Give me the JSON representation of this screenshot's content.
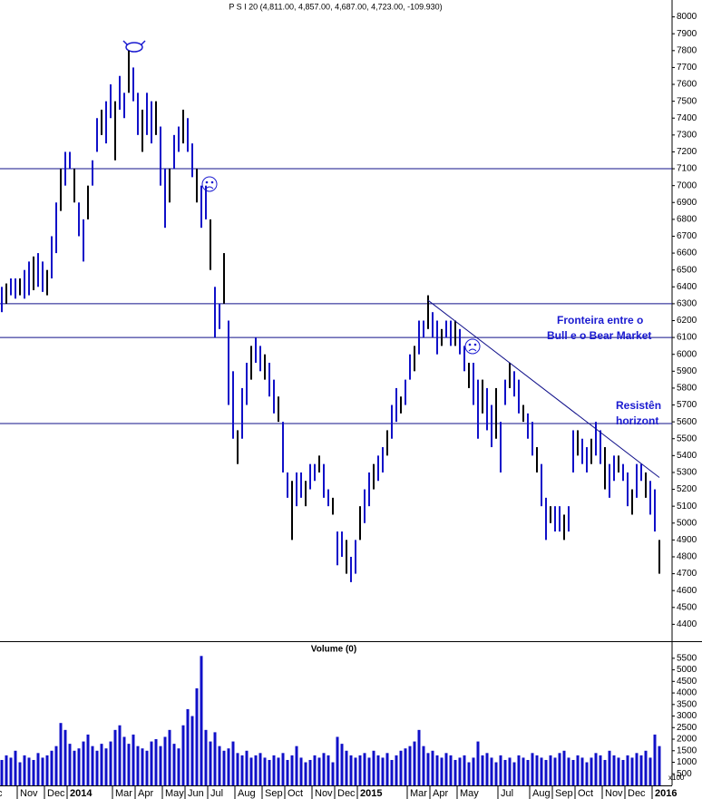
{
  "chart_data": [
    {
      "type": "range",
      "title": "P S I 20 (4,811.00, 4,857.00, 4,687.00, 4,723.00, -109.930)",
      "color": "#1010c8",
      "categories": [
        "c",
        null,
        null,
        null,
        "Nov",
        null,
        null,
        null,
        null,
        null,
        "Dec",
        null,
        null,
        null,
        null,
        "2014",
        null,
        null,
        null,
        null,
        null,
        null,
        null,
        null,
        null,
        "Mar",
        null,
        null,
        null,
        null,
        "Apr",
        null,
        null,
        null,
        null,
        null,
        "May",
        null,
        null,
        null,
        null,
        "Jun",
        null,
        null,
        null,
        null,
        "Jul",
        null,
        null,
        null,
        null,
        null,
        "Aug",
        null,
        null,
        null,
        null,
        null,
        "Sep",
        null,
        null,
        null,
        null,
        "Oct",
        null,
        null,
        null,
        null,
        null,
        "Nov",
        null,
        null,
        null,
        null,
        "Dec",
        null,
        null,
        null,
        null,
        "2015",
        null,
        null,
        null,
        null,
        null,
        null,
        null,
        null,
        null,
        null,
        "Mar",
        null,
        null,
        null,
        null,
        "Apr",
        null,
        null,
        null,
        null,
        null,
        "May",
        null,
        null,
        null,
        null,
        null,
        null,
        null,
        null,
        "Jul",
        null,
        null,
        null,
        null,
        null,
        null,
        "Aug",
        null,
        null,
        null,
        null,
        "Sep",
        null,
        null,
        null,
        null,
        "Oct",
        null,
        null,
        null,
        null,
        null,
        "Nov",
        null,
        null,
        null,
        null,
        "Dec",
        null,
        null,
        null,
        null,
        null,
        "2016",
        null
      ],
      "low": [
        6250,
        6300,
        6350,
        6330,
        6350,
        6330,
        6350,
        6380,
        6400,
        6370,
        6350,
        6450,
        6600,
        6850,
        7000,
        7100,
        6900,
        6700,
        6550,
        6800,
        7000,
        7200,
        7300,
        7250,
        7400,
        7150,
        7450,
        7400,
        7550,
        7500,
        7300,
        7200,
        7300,
        7250,
        7300,
        7000,
        6750,
        6900,
        7100,
        7200,
        7250,
        7200,
        7050,
        6900,
        6750,
        6800,
        6500,
        6100,
        6150,
        6300,
        5700,
        5500,
        5350,
        5500,
        5700,
        5850,
        5950,
        5900,
        5850,
        5750,
        5650,
        5600,
        5300,
        5150,
        4900,
        5100,
        5150,
        5100,
        5200,
        5250,
        5300,
        5150,
        5100,
        5050,
        4750,
        4800,
        4700,
        4650,
        4700,
        4900,
        5000,
        5100,
        5200,
        5250,
        5300,
        5400,
        5500,
        5600,
        5650,
        5700,
        5850,
        5900,
        6000,
        6100,
        6150,
        6100,
        6000,
        6050,
        6100,
        6050,
        6050,
        6000,
        5900,
        5800,
        5700,
        5500,
        5650,
        5550,
        5450,
        5500,
        5300,
        5700,
        5800,
        5750,
        5650,
        5600,
        5500,
        5400,
        5300,
        5100,
        4900,
        5000,
        4950,
        4950,
        4900,
        4950,
        5300,
        5400,
        5350,
        5300,
        5350,
        5400,
        5350,
        5200,
        5150,
        5250,
        5300,
        5250,
        5100,
        5050,
        5150,
        5250,
        5150,
        5050,
        4950,
        4700
      ],
      "high": [
        6400,
        6420,
        6450,
        6450,
        6450,
        6500,
        6550,
        6580,
        6600,
        6550,
        6500,
        6700,
        6900,
        7100,
        7200,
        7200,
        7100,
        6900,
        6800,
        7000,
        7150,
        7400,
        7450,
        7500,
        7600,
        7500,
        7650,
        7550,
        7800,
        7700,
        7550,
        7450,
        7550,
        7500,
        7500,
        7350,
        7100,
        7100,
        7300,
        7350,
        7450,
        7400,
        7250,
        7100,
        7000,
        7000,
        6800,
        6400,
        6300,
        6600,
        6200,
        5900,
        5550,
        5800,
        5950,
        6050,
        6100,
        6050,
        6000,
        5950,
        5850,
        5750,
        5600,
        5300,
        5250,
        5300,
        5300,
        5250,
        5350,
        5350,
        5400,
        5350,
        5200,
        5150,
        4950,
        4950,
        4900,
        4800,
        4900,
        5100,
        5200,
        5300,
        5350,
        5400,
        5450,
        5550,
        5700,
        5800,
        5750,
        5850,
        6000,
        6050,
        6200,
        6200,
        6350,
        6250,
        6200,
        6150,
        6200,
        6200,
        6200,
        6150,
        6050,
        5950,
        5950,
        5850,
        5850,
        5800,
        5700,
        5800,
        5600,
        5850,
        5950,
        5900,
        5850,
        5700,
        5650,
        5600,
        5450,
        5350,
        5150,
        5100,
        5100,
        5100,
        5050,
        5100,
        5550,
        5550,
        5500,
        5450,
        5500,
        5600,
        5550,
        5450,
        5350,
        5400,
        5400,
        5350,
        5300,
        5200,
        5350,
        5350,
        5300,
        5250,
        5200,
        4900
      ],
      "ylim": [
        4300,
        8100
      ],
      "yticks": [
        4400,
        4500,
        4600,
        4700,
        4800,
        4900,
        5000,
        5100,
        5200,
        5300,
        5400,
        5500,
        5600,
        5700,
        5800,
        5900,
        6000,
        6100,
        6200,
        6300,
        6400,
        6500,
        6600,
        6700,
        6800,
        6900,
        7000,
        7100,
        7200,
        7300,
        7400,
        7500,
        7600,
        7700,
        7800,
        7900,
        8000
      ],
      "hlines": [
        7100,
        6300,
        6100,
        5590
      ],
      "trendline": {
        "x": [
          94,
          145
        ],
        "y": [
          6320,
          5270
        ]
      },
      "annotations": [
        [
          "Fronteira entre o",
          "Bull e o Bear Market"
        ],
        [
          "Resistên",
          "horizont"
        ]
      ]
    },
    {
      "type": "bar",
      "title": "Volume (0)",
      "color": "#1010c8",
      "values": [
        1100,
        1300,
        1200,
        1500,
        1000,
        1300,
        1200,
        1100,
        1400,
        1200,
        1300,
        1500,
        1700,
        2700,
        2400,
        1800,
        1500,
        1600,
        1900,
        2200,
        1700,
        1500,
        1800,
        1600,
        1900,
        2400,
        2600,
        2100,
        1800,
        2200,
        1700,
        1600,
        1500,
        1900,
        2000,
        1700,
        2100,
        2400,
        1800,
        1600,
        2600,
        3300,
        3000,
        4200,
        5600,
        2400,
        1900,
        2300,
        1700,
        1500,
        1600,
        1900,
        1400,
        1300,
        1500,
        1200,
        1300,
        1400,
        1200,
        1100,
        1300,
        1200,
        1400,
        1100,
        1300,
        1700,
        1200,
        1000,
        1100,
        1300,
        1200,
        1400,
        1300,
        1000,
        2100,
        1800,
        1500,
        1300,
        1200,
        1300,
        1400,
        1200,
        1500,
        1300,
        1200,
        1400,
        1100,
        1300,
        1500,
        1600,
        1700,
        1900,
        2400,
        1700,
        1400,
        1500,
        1300,
        1200,
        1400,
        1300,
        1100,
        1200,
        1300,
        1000,
        1200,
        1900,
        1300,
        1400,
        1200,
        1000,
        1300,
        1100,
        1200,
        1000,
        1300,
        1200,
        1100,
        1400,
        1300,
        1200,
        1100,
        1300,
        1200,
        1400,
        1500,
        1200,
        1100,
        1300,
        1200,
        1000,
        1200,
        1400,
        1300,
        1100,
        1500,
        1300,
        1200,
        1100,
        1300,
        1200,
        1400,
        1300,
        1500,
        1200,
        2200,
        1700
      ],
      "ylim": [
        0,
        6200
      ],
      "yticks": [
        500,
        1000,
        1500,
        2000,
        2500,
        3000,
        3500,
        4000,
        4500,
        5000,
        5500
      ],
      "unit_label": "x100"
    }
  ]
}
